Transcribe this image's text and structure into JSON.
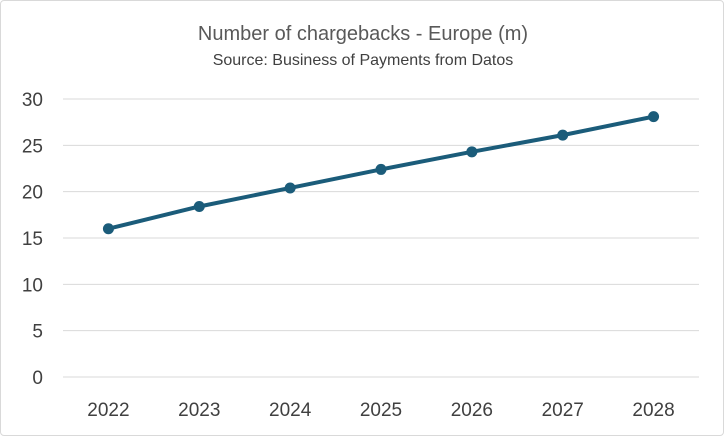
{
  "chart_data": {
    "type": "line",
    "title": "Number of chargebacks - Europe (m)",
    "subtitle": "Source: Business of Payments from Datos",
    "categories": [
      "2022",
      "2023",
      "2024",
      "2025",
      "2026",
      "2027",
      "2028"
    ],
    "series": [
      {
        "values": [
          16.0,
          18.4,
          20.4,
          22.4,
          24.3,
          26.1,
          28.1
        ]
      }
    ],
    "ylim": [
      0,
      30
    ],
    "yticks": [
      "0",
      "5",
      "10",
      "15",
      "20",
      "25",
      "30"
    ],
    "grid": true,
    "legend": "none",
    "colors": {
      "series": "#1b5c7a"
    }
  }
}
